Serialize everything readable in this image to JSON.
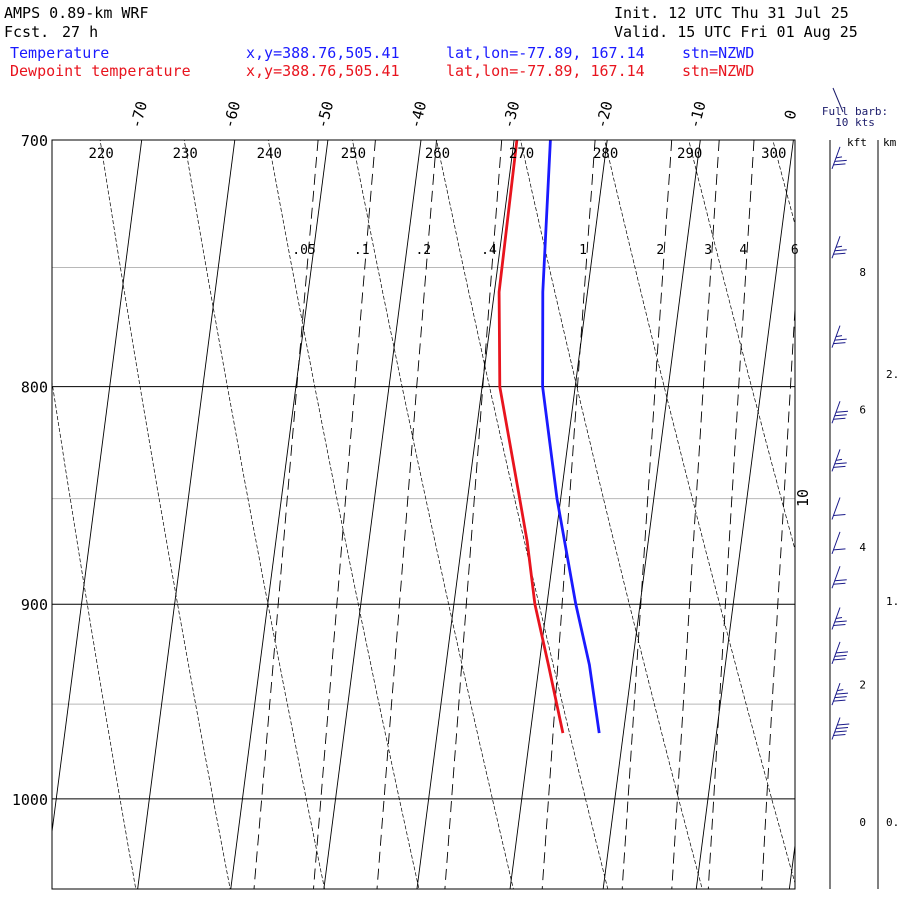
{
  "header": {
    "model": "AMPS 0.89-km WRF",
    "fcst_label": "Fcst.",
    "fcst_value": "27 h",
    "init": "Init. 12 UTC Thu 31 Jul 25",
    "valid": "Valid. 15 UTC Fri 01 Aug 25"
  },
  "legend": [
    {
      "label": "Temperature",
      "xy": "x,y=388.76,505.41",
      "latlon": "lat,lon=-77.89, 167.14",
      "stn": "stn=NZWD",
      "color": "#1a1aff"
    },
    {
      "label": "Dewpoint temperature",
      "xy": "x,y=388.76,505.41",
      "latlon": "lat,lon=-77.89, 167.14",
      "stn": "stn=NZWD",
      "color": "#e8141e"
    }
  ],
  "wind_panel": {
    "title_line1": "Full barb:",
    "title_line2": "10 kts",
    "unit_kft": "kft",
    "unit_km": "km",
    "kft_labels": [
      "8",
      "6",
      "4",
      "2",
      "0"
    ],
    "km_labels": [
      "2.",
      "1.",
      "0."
    ]
  },
  "chart_data": {
    "type": "line",
    "chart_kind": "skew-T log-p diagram",
    "pressure_range_hPa": [
      700,
      1050
    ],
    "pressure_labels": [
      "700",
      "800",
      "900",
      "1000"
    ],
    "temperature_labels": [
      "-70",
      "-60",
      "-50",
      "-40",
      "-30",
      "-20",
      "-10",
      "0",
      "10"
    ],
    "dry_adiabat_labels": [
      "220",
      "230",
      "240",
      "250",
      "260",
      "270",
      "280",
      "290",
      "300"
    ],
    "mixing_ratio_labels": [
      ".05",
      ".1",
      ".2",
      ".4",
      "1",
      "2",
      "3",
      "4",
      "6"
    ],
    "series": [
      {
        "name": "Temperature",
        "color": "#1a1aff",
        "pressure": [
          700,
          760,
          800,
          850,
          900,
          930,
          965
        ],
        "values": [
          -26.1,
          -24.8,
          -23.5,
          -20.4,
          -16.9,
          -14.6,
          -12.6
        ]
      },
      {
        "name": "Dewpoint temperature",
        "color": "#e8141e",
        "pressure": [
          700,
          760,
          800,
          850,
          870,
          900,
          930,
          965
        ],
        "values": [
          -29.7,
          -29.5,
          -28.1,
          -24.4,
          -23.0,
          -21.3,
          -19.0,
          -16.5
        ]
      }
    ],
    "wind_barbs": [
      {
        "height_kft": 9.5,
        "speed_kt": 25
      },
      {
        "height_kft": 8.2,
        "speed_kt": 25
      },
      {
        "height_kft": 6.9,
        "speed_kt": 25
      },
      {
        "height_kft": 5.8,
        "speed_kt": 30
      },
      {
        "height_kft": 5.1,
        "speed_kt": 25
      },
      {
        "height_kft": 4.4,
        "speed_kt": 10
      },
      {
        "height_kft": 3.9,
        "speed_kt": 10
      },
      {
        "height_kft": 3.4,
        "speed_kt": 20
      },
      {
        "height_kft": 2.8,
        "speed_kt": 25
      },
      {
        "height_kft": 2.3,
        "speed_kt": 30
      },
      {
        "height_kft": 1.7,
        "speed_kt": 35
      },
      {
        "height_kft": 1.2,
        "speed_kt": 40
      }
    ]
  }
}
